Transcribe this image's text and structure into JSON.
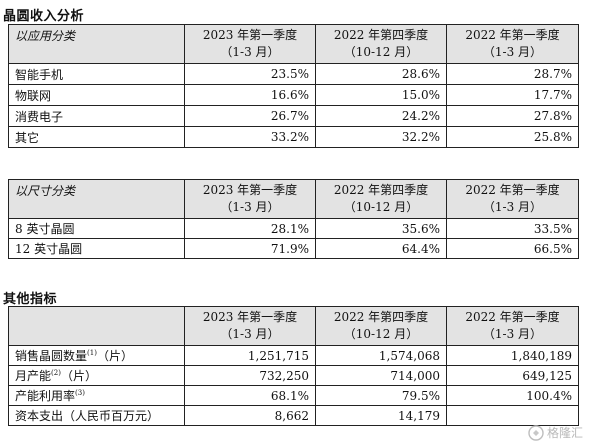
{
  "section1": {
    "title": "晶圆收入分析",
    "application_table": {
      "corner": "以应用分类",
      "periods": [
        {
          "line1": "2023 年第一季度",
          "line2": "（1-3 月）"
        },
        {
          "line1": "2022 年第四季度",
          "line2": "（10-12 月）"
        },
        {
          "line1": "2022 年第一季度",
          "line2": "（1-3 月）"
        }
      ],
      "rows": [
        {
          "label": "智能手机",
          "values": [
            "23.5%",
            "28.6%",
            "28.7%"
          ]
        },
        {
          "label": "物联网",
          "values": [
            "16.6%",
            "15.0%",
            "17.7%"
          ]
        },
        {
          "label": "消费电子",
          "values": [
            "26.7%",
            "24.2%",
            "27.8%"
          ]
        },
        {
          "label": "其它",
          "values": [
            "33.2%",
            "32.2%",
            "25.8%"
          ]
        }
      ]
    },
    "size_table": {
      "corner": "以尺寸分类",
      "periods": [
        {
          "line1": "2023 年第一季度",
          "line2": "（1-3 月）"
        },
        {
          "line1": "2022 年第四季度",
          "line2": "（10-12 月）"
        },
        {
          "line1": "2022 年第一季度",
          "line2": "（1-3 月）"
        }
      ],
      "rows": [
        {
          "label": "8 英寸晶圆",
          "values": [
            "28.1%",
            "35.6%",
            "33.5%"
          ]
        },
        {
          "label": "12 英寸晶圆",
          "values": [
            "71.9%",
            "64.4%",
            "66.5%"
          ]
        }
      ]
    }
  },
  "section2": {
    "title": "其他指标",
    "table": {
      "corner": "",
      "periods": [
        {
          "line1": "2023 年第一季度",
          "line2": "（1-3 月）"
        },
        {
          "line1": "2022 年第四季度",
          "line2": "（10-12 月）"
        },
        {
          "line1": "2022 年第一季度",
          "line2": "（1-3 月）"
        }
      ],
      "rows": [
        {
          "label": "销售晶圆数量",
          "sup": "(1)",
          "unit": "（片）",
          "values": [
            "1,251,715",
            "1,574,068",
            "1,840,189"
          ]
        },
        {
          "label": "月产能",
          "sup": "(2)",
          "unit": "（片）",
          "values": [
            "732,250",
            "714,000",
            "649,125"
          ]
        },
        {
          "label": "产能利用率",
          "sup": "(3)",
          "unit": "",
          "values": [
            "68.1%",
            "79.5%",
            "100.4%"
          ]
        },
        {
          "label": "资本支出（人民币百万元）",
          "sup": "",
          "unit": "",
          "values": [
            "8,662",
            "14,179",
            ""
          ]
        }
      ]
    }
  },
  "watermark": {
    "text": "格隆汇",
    "icon": "gelonghui-logo-icon"
  }
}
